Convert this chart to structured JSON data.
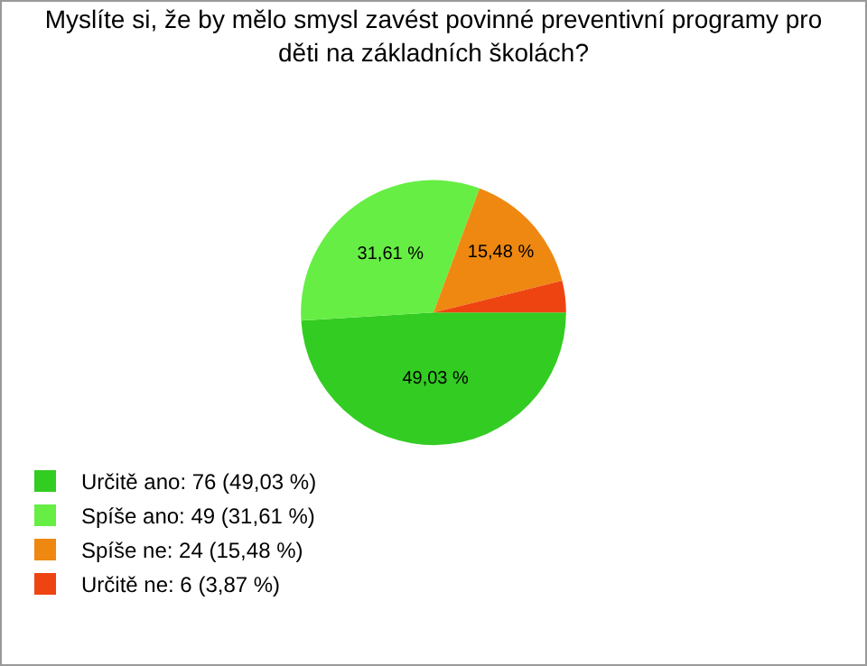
{
  "chart_data": {
    "type": "pie",
    "title": "Myslíte si, že by mělo smysl zavést povinné preventivní programy pro děti na základních školách?",
    "categories": [
      "Určitě ano: 76 (49,03 %)",
      "Spíše ano: 49 (31,61 %)",
      "Spíše ne: 24 (15,48 %)",
      "Určitě ne: 6 (3,87 %)"
    ],
    "values": [
      49.03,
      31.61,
      15.48,
      3.87
    ],
    "value_labels": [
      "49,03 %",
      "31,61 %",
      "15,48 %",
      null
    ],
    "colors": [
      "#33cc22",
      "#66ee44",
      "#ee8811",
      "#ee4411"
    ],
    "legend": "bottom left"
  }
}
